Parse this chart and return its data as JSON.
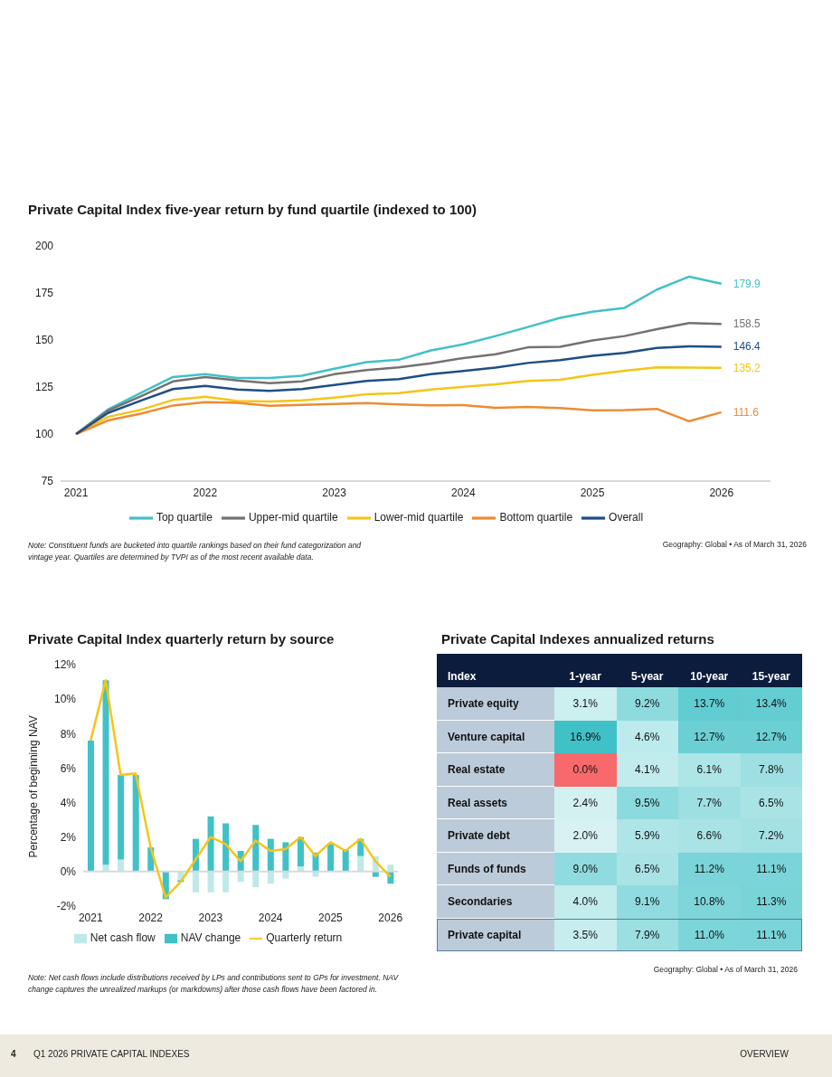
{
  "chart_data": [
    {
      "type": "line",
      "title": "Private Capital Index five-year return by fund quartile (indexed to 100)",
      "x": [
        2021,
        2021.25,
        2021.5,
        2021.75,
        2022,
        2022.25,
        2022.5,
        2022.75,
        2023,
        2023.25,
        2023.5,
        2023.75,
        2024,
        2024.25,
        2024.5,
        2024.75,
        2025,
        2025.25,
        2025.5,
        2025.75,
        2026
      ],
      "series": [
        {
          "name": "Top quartile",
          "color": "#40c1c8",
          "values": [
            100,
            113.2,
            121.8,
            130.3,
            131.9,
            129.8,
            129.8,
            131,
            134.7,
            138.2,
            139.5,
            144.5,
            147.7,
            152.1,
            156.9,
            161.8,
            165,
            167.1,
            176.8,
            183.7,
            179.9
          ],
          "value_labels": [
            null,
            null,
            null,
            null,
            null,
            null,
            null,
            null,
            null,
            null,
            null,
            null,
            null,
            null,
            null,
            null,
            null,
            null,
            null,
            null,
            "179.9"
          ]
        },
        {
          "name": "Upper-mid quartile",
          "color": "#767171",
          "values": [
            100,
            112.6,
            120,
            128,
            130.3,
            128.5,
            127,
            128,
            131.8,
            134,
            135.5,
            137.6,
            140.4,
            142.4,
            146.1,
            146.4,
            149.8,
            152.1,
            155.8,
            159,
            158.5
          ],
          "value_labels": [
            null,
            null,
            null,
            null,
            null,
            null,
            null,
            null,
            null,
            null,
            null,
            null,
            null,
            null,
            null,
            null,
            null,
            null,
            null,
            null,
            "158.5"
          ]
        },
        {
          "name": "Lower-mid quartile",
          "color": "#f5c518",
          "values": [
            100,
            109.2,
            112.9,
            118.1,
            119.8,
            117.6,
            117.3,
            117.9,
            119.4,
            121.1,
            121.8,
            123.7,
            125.1,
            126.4,
            128.2,
            128.8,
            131.5,
            133.6,
            135.4,
            135.3,
            135.2
          ],
          "value_labels": [
            null,
            null,
            null,
            null,
            null,
            null,
            null,
            null,
            null,
            null,
            null,
            null,
            null,
            null,
            null,
            null,
            null,
            null,
            null,
            null,
            "135.2"
          ]
        },
        {
          "name": "Bottom quartile",
          "color": "#ed8b35",
          "values": [
            100,
            107.3,
            110.8,
            115.2,
            116.9,
            116.6,
            115,
            115.5,
            116,
            116.5,
            115.8,
            115.3,
            115.4,
            113.9,
            114.4,
            113.8,
            112.6,
            112.8,
            113.4,
            106.8,
            111.6
          ],
          "value_labels": [
            null,
            null,
            null,
            null,
            null,
            null,
            null,
            null,
            null,
            null,
            null,
            null,
            null,
            null,
            null,
            null,
            null,
            null,
            null,
            null,
            "111.6"
          ]
        },
        {
          "name": "Overall",
          "color": "#1f4e85",
          "values": [
            100,
            111.3,
            117.7,
            123.9,
            125.6,
            123.7,
            122.9,
            123.9,
            126.1,
            128.2,
            129.2,
            131.8,
            133.5,
            135.3,
            137.8,
            139.3,
            141.6,
            143.2,
            145.8,
            146.6,
            146.4
          ],
          "value_labels": [
            null,
            null,
            null,
            null,
            null,
            null,
            null,
            null,
            null,
            null,
            null,
            null,
            null,
            null,
            null,
            null,
            null,
            null,
            null,
            null,
            "146.4"
          ]
        }
      ],
      "xlim": [
        2020.88,
        2026.38
      ],
      "xticks": [
        2021,
        2022,
        2023,
        2024,
        2025,
        2026
      ],
      "ylim": [
        75,
        200
      ],
      "yticks": [
        75,
        100,
        125,
        150,
        175,
        200
      ],
      "legend": "bottom",
      "marker": "none",
      "annotations": [
        "Note: Constituent funds are bucketed into quartile rankings based on their fund categorization and vintage year. Quartiles are determined by TVPI as of the most recent available data.",
        "Geography: Global • As of March 31, 2026"
      ]
    },
    {
      "type": "bar",
      "title": "Private Capital Index quarterly return by source",
      "ylabel": "Percentage of beginning NAV",
      "categories": [
        "2021",
        null,
        null,
        null,
        "2022",
        null,
        null,
        null,
        "2023",
        null,
        null,
        null,
        "2024",
        null,
        null,
        null,
        "2025",
        null,
        null,
        null,
        "2026"
      ],
      "stacked": true,
      "series": [
        {
          "name": "Net cash flow",
          "color": "#bfe9e8",
          "values": [
            0,
            0.4,
            0.7,
            null,
            0,
            0,
            -0.5,
            -1.2,
            -1.2,
            -1.2,
            -0.6,
            -0.9,
            -0.7,
            -0.4,
            0.3,
            -0.3,
            null,
            null,
            0.9,
            0.9,
            0.4
          ]
        },
        {
          "name": "NAV change",
          "color": "#40c1c8",
          "values": [
            7.6,
            10.7,
            4.9,
            5.6,
            1.4,
            -1.6,
            -0.1,
            1.9,
            3.2,
            2.8,
            1.2,
            2.7,
            1.9,
            1.7,
            1.7,
            1.1,
            1.6,
            1.3,
            1.0,
            -0.3,
            -0.7
          ]
        },
        {
          "name": "Quarterly return",
          "type": "line",
          "color": "#f5c518",
          "values": [
            7.6,
            11.1,
            5.6,
            5.7,
            1.4,
            -1.5,
            -0.6,
            0.7,
            2.0,
            1.6,
            0.6,
            1.8,
            1.2,
            1.3,
            2.0,
            0.9,
            1.7,
            1.2,
            1.9,
            0.6,
            -0.3
          ]
        }
      ],
      "ylim": [
        -2,
        12
      ],
      "yticks": [
        {
          "value": -2,
          "label": "-2%"
        },
        {
          "value": 0,
          "label": "0%"
        },
        {
          "value": 2,
          "label": "2%"
        },
        {
          "value": 4,
          "label": "4%"
        },
        {
          "value": 6,
          "label": "6%"
        },
        {
          "value": 8,
          "label": "8%"
        },
        {
          "value": 10,
          "label": "10%"
        },
        {
          "value": 12,
          "label": "12%"
        }
      ],
      "ref_lines": [
        {
          "axis": "y",
          "value": 0,
          "color": "#d9d9d9"
        }
      ],
      "legend": "bottom",
      "marker": "none",
      "annotations": [
        "Note: Net cash flows include distributions received by LPs and contributions sent to GPs for investment. NAV change captures the unrealized markups (or markdowns) after those cash flows have been factored in."
      ]
    },
    {
      "type": "heatmap",
      "title": "Private Capital Indexes annualized returns",
      "ylabel": "Index",
      "categories": [
        "1-year",
        "5-year",
        "10-year",
        "15-year"
      ],
      "y_categories": [
        "Private equity",
        "Venture capital",
        "Real estate",
        "Real assets",
        "Private debt",
        "Funds of funds",
        "Secondaries",
        "Private capital"
      ],
      "cells": [
        [
          3.1,
          9.2,
          13.7,
          13.4
        ],
        [
          16.9,
          4.6,
          12.7,
          12.7
        ],
        [
          0.0,
          4.1,
          6.1,
          7.8
        ],
        [
          2.4,
          9.5,
          7.7,
          6.5
        ],
        [
          2.0,
          5.9,
          6.6,
          7.2
        ],
        [
          9.0,
          6.5,
          11.2,
          11.1
        ],
        [
          4.0,
          9.1,
          10.8,
          11.3
        ],
        [
          3.5,
          7.9,
          11.0,
          11.1
        ]
      ],
      "cell_labels": [
        [
          "3.1%",
          "9.2%",
          "13.7%",
          "13.4%"
        ],
        [
          "16.9%",
          "4.6%",
          "12.7%",
          "12.7%"
        ],
        [
          "0.0%",
          "4.1%",
          "6.1%",
          "7.8%"
        ],
        [
          "2.4%",
          "9.5%",
          "7.7%",
          "6.5%"
        ],
        [
          "2.0%",
          "5.9%",
          "6.6%",
          "7.2%"
        ],
        [
          "9.0%",
          "6.5%",
          "11.2%",
          "11.1%"
        ],
        [
          "4.0%",
          "9.1%",
          "10.8%",
          "11.3%"
        ],
        [
          "3.5%",
          "7.9%",
          "11.0%",
          "11.1%"
        ]
      ],
      "annotations": [
        "Geography: Global • As of March 31, 2026"
      ]
    },
    {
      "type": "other",
      "annotations": [
        "4",
        "Q1 2026 PRIVATE CAPITAL INDEXES",
        "OVERVIEW"
      ]
    }
  ]
}
